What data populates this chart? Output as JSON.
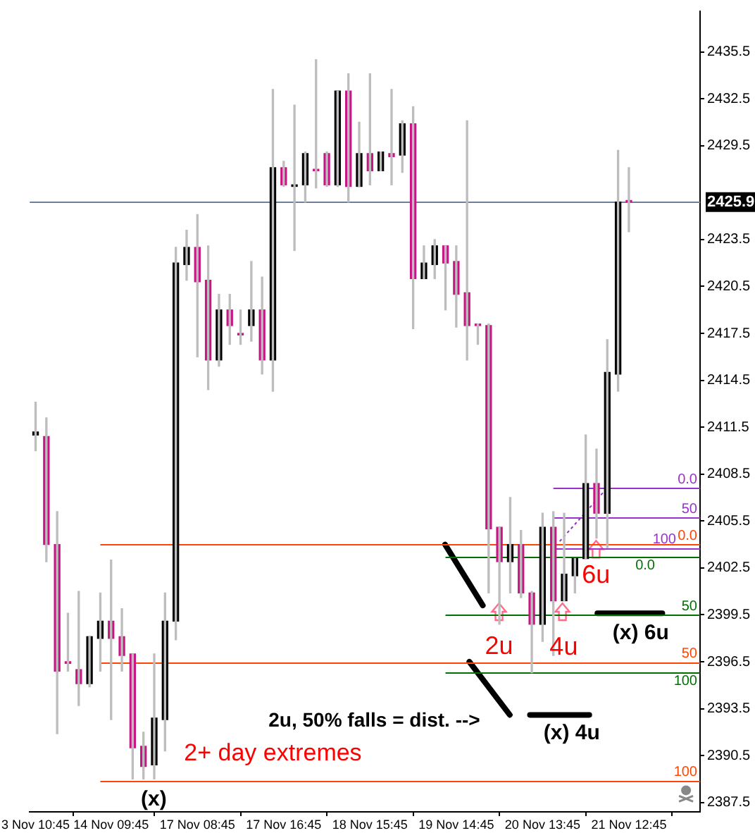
{
  "chart_data": {
    "type": "candlestick",
    "categories": [
      "3 Nov 10:45",
      null,
      null,
      null,
      null,
      null,
      null,
      "14 Nov 09:45",
      null,
      null,
      null,
      null,
      null,
      null,
      null,
      "17 Nov 08:45",
      null,
      null,
      null,
      null,
      null,
      null,
      null,
      "17 Nov 16:45",
      null,
      null,
      null,
      null,
      null,
      null,
      null,
      "18 Nov 15:45",
      null,
      null,
      null,
      null,
      null,
      null,
      null,
      "19 Nov 14:45",
      null,
      null,
      null,
      null,
      null,
      null,
      null,
      "20 Nov 13:45",
      null,
      null,
      null,
      null,
      null,
      null,
      null,
      "21 Nov 12:45"
    ],
    "ohlc": [
      [
        2411.0,
        2413.1,
        2410.0,
        2411.2
      ],
      [
        2410.9,
        2412.1,
        2402.9,
        2404.0
      ],
      [
        2404.0,
        2406.1,
        2391.9,
        2395.9
      ],
      [
        2396.5,
        2399.6,
        2395.9,
        2396.4
      ],
      [
        2396.0,
        2401.0,
        2393.7,
        2395.1
      ],
      [
        2395.1,
        2398.1,
        2394.9,
        2398.1
      ],
      [
        2398.0,
        2400.9,
        2395.9,
        2399.1
      ],
      [
        2399.1,
        2403.0,
        2392.8,
        2398.0
      ],
      [
        2398.1,
        2399.9,
        2395.9,
        2396.9
      ],
      [
        2397.0,
        2397.0,
        2389.0,
        2391.0
      ],
      [
        2391.1,
        2392.0,
        2389.0,
        2389.8
      ],
      [
        2389.9,
        2397.0,
        2389.0,
        2392.9
      ],
      [
        2392.8,
        2400.9,
        2390.8,
        2399.1
      ],
      [
        2399.1,
        2423.0,
        2397.9,
        2422.0
      ],
      [
        2421.9,
        2424.1,
        2420.9,
        2423.0
      ],
      [
        2423.0,
        2425.1,
        2416.0,
        2420.8
      ],
      [
        2420.9,
        2423.1,
        2413.9,
        2415.8
      ],
      [
        2415.8,
        2420.0,
        2415.4,
        2419.0
      ],
      [
        2419.0,
        2420.0,
        2416.8,
        2418.0
      ],
      [
        2417.5,
        2419.0,
        2416.8,
        2417.4
      ],
      [
        2418.0,
        2422.1,
        2417.0,
        2419.0
      ],
      [
        2419.0,
        2421.1,
        2414.9,
        2415.8
      ],
      [
        2415.8,
        2433.1,
        2413.8,
        2428.1
      ],
      [
        2428.1,
        2428.5,
        2426.9,
        2427.0
      ],
      [
        2426.9,
        2432.1,
        2422.8,
        2427.0
      ],
      [
        2427.0,
        2429.1,
        2425.9,
        2429.0
      ],
      [
        2428.0,
        2435.0,
        2426.8,
        2427.9
      ],
      [
        2429.0,
        2429.1,
        2426.9,
        2427.0
      ],
      [
        2427.0,
        2433.0,
        2426.9,
        2433.0
      ],
      [
        2433.0,
        2434.1,
        2425.9,
        2426.9
      ],
      [
        2426.9,
        2431.0,
        2426.9,
        2429.0
      ],
      [
        2429.0,
        2434.1,
        2427.0,
        2427.9
      ],
      [
        2427.9,
        2429.1,
        2427.9,
        2429.1
      ],
      [
        2429.0,
        2433.1,
        2427.0,
        2428.8
      ],
      [
        2428.9,
        2431.1,
        2427.8,
        2430.9
      ],
      [
        2430.9,
        2432.0,
        2417.8,
        2421.0
      ],
      [
        2421.0,
        2423.1,
        2421.0,
        2422.0
      ],
      [
        2421.9,
        2423.5,
        2421.0,
        2423.1
      ],
      [
        2423.1,
        2423.1,
        2419.0,
        2422.0
      ],
      [
        2422.1,
        2423.1,
        2417.9,
        2420.0
      ],
      [
        2420.1,
        2431.1,
        2415.8,
        2418.0
      ],
      [
        2418.1,
        2418.1,
        2416.8,
        2418.0
      ],
      [
        2418.0,
        2418.1,
        2400.9,
        2405.0
      ],
      [
        2405.1,
        2405.1,
        2398.9,
        2402.9
      ],
      [
        2402.9,
        2407.0,
        2400.9,
        2404.0
      ],
      [
        2404.0,
        2404.9,
        2400.6,
        2400.9
      ],
      [
        2400.9,
        2401.0,
        2395.8,
        2398.9
      ],
      [
        2398.9,
        2406.0,
        2397.8,
        2405.1
      ],
      [
        2405.1,
        2406.1,
        2396.9,
        2400.4
      ],
      [
        2400.4,
        2406.0,
        2400.4,
        2402.1
      ],
      [
        2402.0,
        2403.1,
        2400.9,
        2403.1
      ],
      [
        2403.1,
        2411.0,
        2403.1,
        2407.9
      ],
      [
        2407.9,
        2410.1,
        2404.4,
        2406.0
      ],
      [
        2406.0,
        2417.1,
        2403.8,
        2415.0
      ],
      [
        2414.9,
        2429.2,
        2413.8,
        2425.9
      ],
      [
        2426.0,
        2428.1,
        2424.0,
        2425.9
      ]
    ],
    "colors": [
      "#000000",
      "#c71585",
      "#c71585",
      "#c71585",
      "#c71585",
      "#000000",
      "#000000",
      "#c71585",
      "#c71585",
      "#c71585",
      "#c71585",
      "#000000",
      "#000000",
      "#000000",
      "#000000",
      "#c71585",
      "#c71585",
      "#000000",
      "#c71585",
      "#c71585",
      "#000000",
      "#c71585",
      "#000000",
      "#c71585",
      "#000000",
      "#000000",
      "#c71585",
      "#c71585",
      "#000000",
      "#c71585",
      "#000000",
      "#c71585",
      "#000000",
      "#c71585",
      "#000000",
      "#c71585",
      "#000000",
      "#000000",
      "#c71585",
      "#c71585",
      "#c71585",
      "#c71585",
      "#c71585",
      "#c71585",
      "#000000",
      "#c71585",
      "#c71585",
      "#000000",
      "#c71585",
      "#000000",
      "#000000",
      "#000000",
      "#c71585",
      "#000000",
      "#000000",
      "#c71585"
    ],
    "ylim": [
      2386.9,
      2438.1
    ],
    "yticks": [
      2387.5,
      2390.5,
      2393.5,
      2396.5,
      2399.5,
      2402.5,
      2405.5,
      2408.5,
      2411.5,
      2414.5,
      2417.5,
      2420.5,
      2423.5,
      2429.5,
      2432.5,
      2435.5
    ],
    "ref_lines": [
      {
        "axis": "y",
        "value": 2425.9,
        "label": "2425.9",
        "color": "#6d7f99"
      },
      {
        "axis": "y",
        "value": 2404.0,
        "color": "#ff4500"
      },
      {
        "axis": "y",
        "value": 2396.5,
        "color": "#ff4500"
      },
      {
        "axis": "y",
        "value": 2388.9,
        "color": "#ff4500"
      },
      {
        "axis": "y",
        "value": 2403.2,
        "color": "#007000"
      },
      {
        "axis": "y",
        "value": 2399.5,
        "color": "#007000"
      },
      {
        "axis": "y",
        "value": 2395.8,
        "color": "#007000"
      },
      {
        "axis": "y",
        "value": 2407.6,
        "color": "#9932cc"
      },
      {
        "axis": "y",
        "value": 2405.7,
        "color": "#9932cc"
      },
      {
        "axis": "y",
        "value": 2403.8,
        "color": "#9932cc"
      }
    ],
    "annotations": [
      "2+ day extremes",
      "(x)",
      "2u, 50% falls = dist. -->",
      {
        "text": "2u",
        "y": 2399.5
      },
      "4u",
      "6u",
      "(x) 4u",
      "(x) 6u",
      {
        "text": "0.0",
        "y": 2404.0
      },
      {
        "text": "50",
        "y": 2396.5
      },
      {
        "text": "100",
        "y": 2388.9
      },
      {
        "text": "0.0",
        "y": 2403.2
      },
      {
        "text": "50",
        "y": 2399.5
      },
      {
        "text": "100",
        "y": 2395.8
      },
      {
        "text": "0.0",
        "y": 2407.6
      },
      {
        "text": "50",
        "y": 2405.7
      },
      {
        "text": "100",
        "y": 2403.8
      }
    ],
    "legend": false,
    "grid": false
  }
}
